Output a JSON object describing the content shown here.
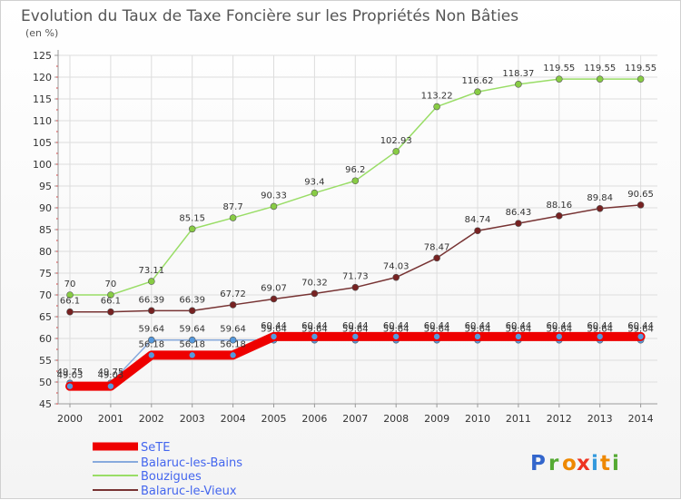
{
  "chart_data": {
    "type": "line",
    "title": "Evolution du Taux de Taxe Foncière sur les Propriétés Non Bâties",
    "subtitle": "(en %)",
    "categories": [
      "2000",
      "2001",
      "2002",
      "2003",
      "2004",
      "2005",
      "2006",
      "2007",
      "2008",
      "2009",
      "2010",
      "2011",
      "2012",
      "2013",
      "2014"
    ],
    "ylim": [
      45,
      125
    ],
    "yticks": [
      45,
      50,
      55,
      60,
      65,
      70,
      75,
      80,
      85,
      90,
      95,
      100,
      105,
      110,
      115,
      120,
      125
    ],
    "series": [
      {
        "name": "SeTE",
        "color": "#ee0000",
        "values": [
          49.03,
          49.03,
          56.18,
          56.18,
          56.18,
          60.44,
          60.44,
          60.44,
          60.44,
          60.44,
          60.44,
          60.44,
          60.44,
          60.44,
          60.44
        ],
        "labels": [
          "49.03",
          "49.03",
          "56.18",
          "56.18",
          "56.18",
          "60.44",
          "60.44",
          "60.44",
          "60.44",
          "60.44",
          "60.44",
          "60.44",
          "60.44",
          "60.44",
          "60.44"
        ]
      },
      {
        "name": "Balaruc-les-Bains",
        "color": "#88aadd",
        "values": [
          49.75,
          49.75,
          59.64,
          59.64,
          59.64,
          59.64,
          59.64,
          59.64,
          59.64,
          59.64,
          59.64,
          59.64,
          59.64,
          59.64,
          59.64
        ],
        "labels": [
          "49.75",
          "49.75",
          "59.64",
          "59.64",
          "59.64",
          "59.64",
          "59.64",
          "59.64",
          "59.64",
          "59.64",
          "59.64",
          "59.64",
          "59.64",
          "59.64",
          "59.64"
        ]
      },
      {
        "name": "Bouzigues",
        "color": "#99dd66",
        "values": [
          70,
          70,
          73.11,
          85.15,
          87.7,
          90.33,
          93.4,
          96.2,
          102.93,
          113.22,
          116.62,
          118.37,
          119.55,
          119.55,
          119.55
        ],
        "labels": [
          "70",
          "70",
          "73.11",
          "85.15",
          "87.7",
          "90.33",
          "93.4",
          "96.2",
          "102.93",
          "113.22",
          "116.62",
          "118.37",
          "119.55",
          "119.55",
          "119.55"
        ]
      },
      {
        "name": "Balaruc-le-Vieux",
        "color": "#773333",
        "values": [
          66.1,
          66.1,
          66.39,
          66.39,
          67.72,
          69.07,
          70.32,
          71.73,
          74.03,
          78.47,
          84.74,
          86.43,
          88.16,
          89.84,
          90.65
        ],
        "labels": [
          "66.1",
          "66.1",
          "66.39",
          "66.39",
          "67.72",
          "69.07",
          "70.32",
          "71.73",
          "74.03",
          "78.47",
          "84.74",
          "86.43",
          "88.16",
          "89.84",
          "90.65"
        ]
      }
    ]
  },
  "legend": {
    "items": [
      "SeTE",
      "Balaruc-les-Bains",
      "Bouzigues",
      "Balaruc-le-Vieux"
    ]
  },
  "logo": {
    "text": "Proxiti",
    "letters": [
      "P",
      "r",
      "o",
      "x",
      "i",
      "t",
      "i"
    ]
  }
}
